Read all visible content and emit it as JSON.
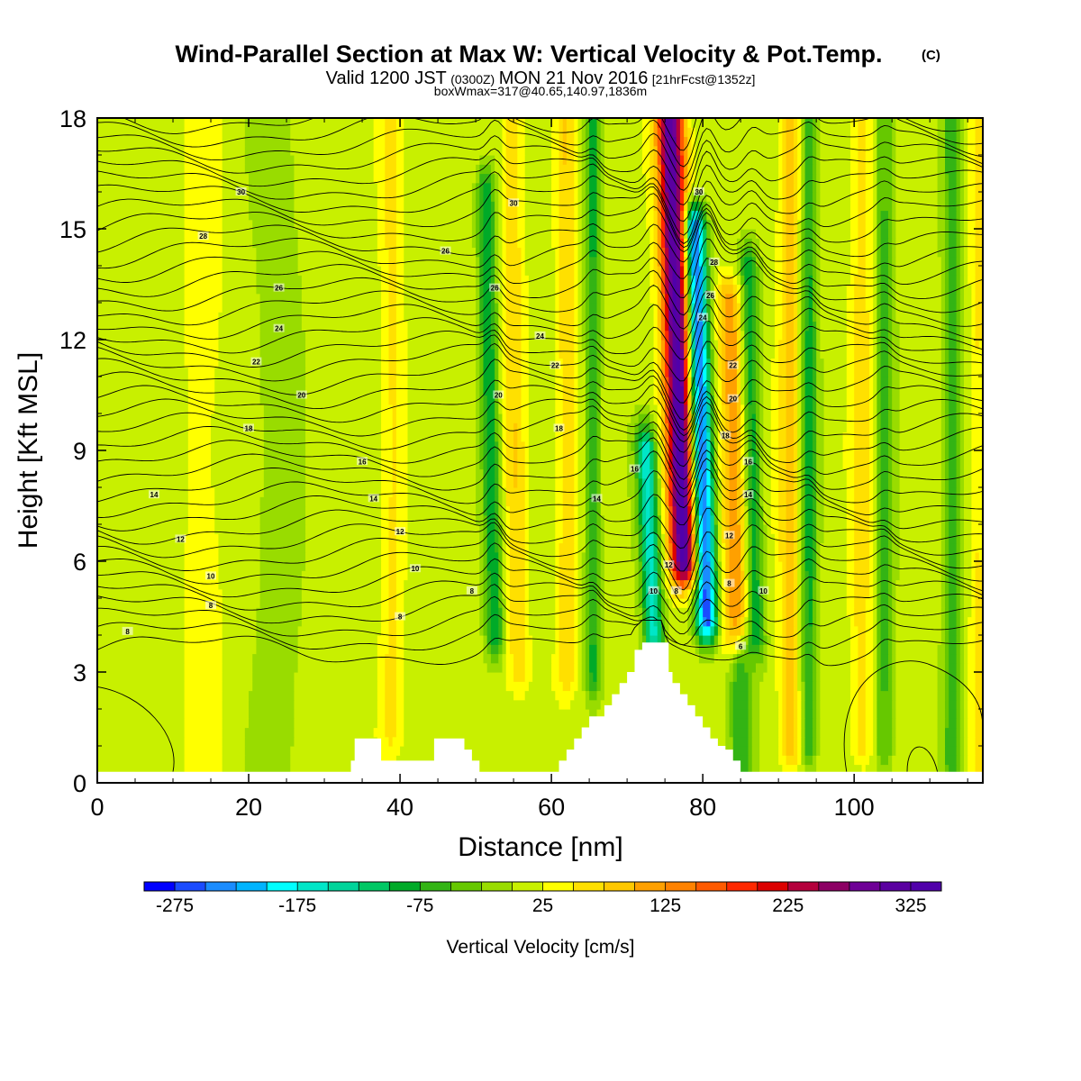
{
  "chart_data": {
    "type": "heatmap",
    "title": "Wind-Parallel Section at Max W: Vertical Velocity & Pot.Temp.",
    "title_mark": "(C)",
    "subtitle_parts": [
      "Valid 1200 JST",
      "(0300Z)",
      "MON 21 Nov 2016",
      "[21hrFcst@1352z]"
    ],
    "subtitle2": "boxWmax=317@40.65,140.97,1836m",
    "xlabel": "Distance [nm]",
    "ylabel": "Height [Kft MSL]",
    "xlim": [
      0,
      117
    ],
    "ylim": [
      0,
      18
    ],
    "x_ticks": [
      "0",
      "20",
      "40",
      "60",
      "80",
      "100"
    ],
    "y_ticks": [
      "0",
      "3",
      "6",
      "9",
      "12",
      "15",
      "18"
    ],
    "colorbar": {
      "label": "Vertical Velocity [cm/s]",
      "min": -300,
      "max": 350,
      "step": 25,
      "tick_labels": [
        "-275",
        "-175",
        "-75",
        "25",
        "125",
        "225",
        "325"
      ],
      "colors": [
        "#0000ff",
        "#1a4bff",
        "#1a8cff",
        "#00b4ff",
        "#00ffff",
        "#00e6c8",
        "#00d49a",
        "#00c864",
        "#00aa28",
        "#33b414",
        "#66c800",
        "#99dc00",
        "#c8f000",
        "#ffff00",
        "#ffe000",
        "#ffc800",
        "#ffa000",
        "#ff8200",
        "#ff5a00",
        "#ff2800",
        "#dc0000",
        "#b4003c",
        "#8c0064",
        "#6e0096",
        "#5a00a0",
        "#5000aa"
      ]
    },
    "velocity_features": [
      {
        "x": 77.5,
        "y0": 6.0,
        "y1": 18.0,
        "peak": 320,
        "halfwidth": 1.8,
        "tilt": -0.15
      },
      {
        "x": 80.5,
        "y0": 4.5,
        "y1": 15.0,
        "peak": -280,
        "halfwidth": 1.4,
        "tilt": -0.15
      },
      {
        "x": 73.5,
        "y0": 4.0,
        "y1": 9.0,
        "peak": -170,
        "halfwidth": 1.3,
        "tilt": -0.2
      },
      {
        "x": 84.5,
        "y0": 4.0,
        "y1": 13.0,
        "peak": 110,
        "halfwidth": 1.8,
        "tilt": -0.1
      },
      {
        "x": 87.0,
        "y0": 4.0,
        "y1": 14.0,
        "peak": -110,
        "halfwidth": 1.2,
        "tilt": -0.1
      },
      {
        "x": 52.5,
        "y0": 4.0,
        "y1": 16.0,
        "peak": -110,
        "halfwidth": 1.2,
        "tilt": -0.1
      },
      {
        "x": 55.5,
        "y0": 3.0,
        "y1": 18.0,
        "peak": 55,
        "halfwidth": 1.5,
        "tilt": -0.05
      },
      {
        "x": 39.0,
        "y0": 1.5,
        "y1": 18.0,
        "peak": 45,
        "halfwidth": 1.5,
        "tilt": 0
      },
      {
        "x": 62.0,
        "y0": 3.0,
        "y1": 18.0,
        "peak": 60,
        "halfwidth": 1.3,
        "tilt": 0
      },
      {
        "x": 65.5,
        "y0": 3.0,
        "y1": 18.0,
        "peak": -90,
        "halfwidth": 1.0,
        "tilt": 0
      },
      {
        "x": 91.5,
        "y0": 1.0,
        "y1": 18.0,
        "peak": 70,
        "halfwidth": 1.5,
        "tilt": 0
      },
      {
        "x": 94.0,
        "y0": 1.0,
        "y1": 18.0,
        "peak": -95,
        "halfwidth": 1.1,
        "tilt": 0
      },
      {
        "x": 101.0,
        "y0": 1.0,
        "y1": 18.0,
        "peak": 50,
        "halfwidth": 1.5,
        "tilt": 0
      },
      {
        "x": 104.0,
        "y0": 1.0,
        "y1": 18.0,
        "peak": -70,
        "halfwidth": 1.2,
        "tilt": 0
      },
      {
        "x": 113.0,
        "y0": 0.5,
        "y1": 18.0,
        "peak": -80,
        "halfwidth": 1.2,
        "tilt": 0
      },
      {
        "x": 116.5,
        "y0": 0.5,
        "y1": 18.0,
        "peak": 45,
        "halfwidth": 1.2,
        "tilt": 0
      },
      {
        "x": 85.0,
        "y0": 0.5,
        "y1": 3.5,
        "peak": -90,
        "halfwidth": 1.5,
        "tilt": 0
      },
      {
        "x": 24.0,
        "y0": 0.5,
        "y1": 18.0,
        "peak": -30,
        "halfwidth": 3.0,
        "tilt": 0
      },
      {
        "x": 14.0,
        "y0": 0.5,
        "y1": 18.0,
        "peak": 25,
        "halfwidth": 3.0,
        "tilt": 0
      }
    ],
    "terrain": {
      "x": [
        0,
        32.5,
        33.5,
        34,
        37,
        37.5,
        44,
        44.5,
        47.5,
        48.5,
        49.5,
        50.5,
        60,
        61,
        62,
        63,
        64,
        65,
        66,
        67,
        68,
        69,
        70,
        71,
        72,
        74.5,
        75.5,
        76,
        77,
        78,
        79,
        80,
        81,
        82,
        83,
        84,
        85,
        117
      ],
      "y": [
        0.3,
        0.3,
        0.6,
        1.2,
        1.2,
        0.6,
        0.6,
        1.2,
        1.2,
        0.9,
        0.6,
        0.3,
        0.3,
        0.6,
        0.9,
        1.2,
        1.5,
        1.8,
        1.8,
        2.1,
        2.4,
        2.7,
        3.0,
        3.6,
        3.8,
        3.8,
        3.0,
        2.7,
        2.4,
        2.1,
        1.8,
        1.5,
        1.2,
        1.0,
        0.9,
        0.6,
        0.3,
        0.3
      ]
    },
    "isentrope_labels": [
      {
        "text": "30",
        "x": 19,
        "y": 16.0
      },
      {
        "text": "28",
        "x": 14,
        "y": 14.8
      },
      {
        "text": "26",
        "x": 24,
        "y": 13.4
      },
      {
        "text": "24",
        "x": 24,
        "y": 12.3
      },
      {
        "text": "22",
        "x": 21,
        "y": 11.4
      },
      {
        "text": "20",
        "x": 27,
        "y": 10.5
      },
      {
        "text": "18",
        "x": 20,
        "y": 9.6
      },
      {
        "text": "16",
        "x": 35,
        "y": 8.7
      },
      {
        "text": "14",
        "x": 7.5,
        "y": 7.8
      },
      {
        "text": "14",
        "x": 36.5,
        "y": 7.7
      },
      {
        "text": "12",
        "x": 11,
        "y": 6.6
      },
      {
        "text": "12",
        "x": 40,
        "y": 6.8
      },
      {
        "text": "10",
        "x": 15,
        "y": 5.6
      },
      {
        "text": "10",
        "x": 42,
        "y": 5.8
      },
      {
        "text": "8",
        "x": 15,
        "y": 4.8
      },
      {
        "text": "8",
        "x": 4,
        "y": 4.1
      },
      {
        "text": "8",
        "x": 40,
        "y": 4.5
      },
      {
        "text": "8",
        "x": 49.5,
        "y": 5.2
      },
      {
        "text": "30",
        "x": 55,
        "y": 15.7
      },
      {
        "text": "26",
        "x": 46,
        "y": 14.4
      },
      {
        "text": "26",
        "x": 52.5,
        "y": 13.4
      },
      {
        "text": "24",
        "x": 58.5,
        "y": 12.1
      },
      {
        "text": "22",
        "x": 60.5,
        "y": 11.3
      },
      {
        "text": "20",
        "x": 53,
        "y": 10.5
      },
      {
        "text": "18",
        "x": 61,
        "y": 9.6
      },
      {
        "text": "16",
        "x": 71,
        "y": 8.5
      },
      {
        "text": "14",
        "x": 66,
        "y": 7.7
      },
      {
        "text": "30",
        "x": 79.5,
        "y": 16.0
      },
      {
        "text": "28",
        "x": 81.5,
        "y": 14.1
      },
      {
        "text": "26",
        "x": 81,
        "y": 13.2
      },
      {
        "text": "24",
        "x": 80,
        "y": 12.6
      },
      {
        "text": "22",
        "x": 84,
        "y": 11.3
      },
      {
        "text": "20",
        "x": 84,
        "y": 10.4
      },
      {
        "text": "18",
        "x": 83,
        "y": 9.4
      },
      {
        "text": "16",
        "x": 86,
        "y": 8.7
      },
      {
        "text": "14",
        "x": 86,
        "y": 7.8
      },
      {
        "text": "12",
        "x": 83.5,
        "y": 6.7
      },
      {
        "text": "10",
        "x": 88,
        "y": 5.2
      },
      {
        "text": "8",
        "x": 83.5,
        "y": 5.4
      },
      {
        "text": "6",
        "x": 85,
        "y": 3.7
      },
      {
        "text": "12",
        "x": 75.5,
        "y": 5.9
      },
      {
        "text": "10",
        "x": 73.5,
        "y": 5.2
      },
      {
        "text": "8",
        "x": 76.5,
        "y": 5.2
      }
    ]
  }
}
